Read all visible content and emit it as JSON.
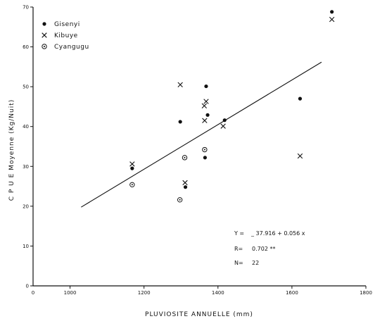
{
  "chart_data": {
    "type": "scatter",
    "title": "",
    "xlabel": "PLUVIOSITE   ANNUELLE (mm)",
    "ylabel": "C P U E   Moyenne  (Kg/Nuit)",
    "xlim": [
      900,
      1800
    ],
    "ylim": [
      0,
      70
    ],
    "x_ticks": [
      1000,
      1200,
      1400,
      1600,
      1800
    ],
    "y_ticks": [
      0,
      10,
      20,
      30,
      40,
      50,
      60,
      70
    ],
    "x_tick_labels": [
      "1000",
      "1200",
      "1400",
      "1600",
      "1800"
    ],
    "y_tick_labels": [
      "0",
      "10",
      "20",
      "30",
      "40",
      "50",
      "60",
      "70"
    ],
    "origin_label": "0",
    "grid": false,
    "legend_position": "top-left",
    "series": [
      {
        "name": "Gisenyi",
        "marker": "dot",
        "points": [
          [
            1168,
            29.5
          ],
          [
            1298,
            41.2
          ],
          [
            1312,
            24.8
          ],
          [
            1365,
            32.2
          ],
          [
            1368,
            50.1
          ],
          [
            1372,
            42.9
          ],
          [
            1418,
            41.6
          ],
          [
            1622,
            47.0
          ],
          [
            1708,
            68.8
          ]
        ]
      },
      {
        "name": "Kibuye",
        "marker": "x",
        "points": [
          [
            1168,
            30.6
          ],
          [
            1298,
            50.5
          ],
          [
            1311,
            25.9
          ],
          [
            1363,
            45.2
          ],
          [
            1364,
            41.5
          ],
          [
            1368,
            46.3
          ],
          [
            1414,
            40.1
          ],
          [
            1622,
            32.6
          ],
          [
            1708,
            66.9
          ]
        ]
      },
      {
        "name": "Cyangugu",
        "marker": "circle-dot",
        "points": [
          [
            1168,
            25.4
          ],
          [
            1297,
            21.6
          ],
          [
            1310,
            32.2
          ],
          [
            1364,
            34.2
          ]
        ]
      }
    ],
    "regression": {
      "x_start": 1030,
      "x_end": 1680,
      "intercept": -37.916,
      "slope": 0.056
    },
    "annotations": [
      {
        "label": "Y =",
        "value": "_ 37.916 + 0.056 x"
      },
      {
        "label": "R=",
        "value": "0.702 **"
      },
      {
        "label": "N=",
        "value": "22"
      }
    ]
  }
}
